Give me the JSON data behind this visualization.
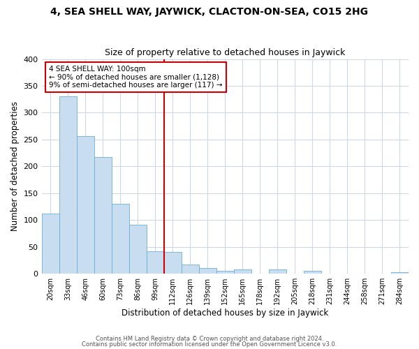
{
  "title": "4, SEA SHELL WAY, JAYWICK, CLACTON-ON-SEA, CO15 2HG",
  "subtitle": "Size of property relative to detached houses in Jaywick",
  "xlabel": "Distribution of detached houses by size in Jaywick",
  "ylabel": "Number of detached properties",
  "bar_labels": [
    "20sqm",
    "33sqm",
    "46sqm",
    "60sqm",
    "73sqm",
    "86sqm",
    "99sqm",
    "112sqm",
    "126sqm",
    "139sqm",
    "152sqm",
    "165sqm",
    "178sqm",
    "192sqm",
    "205sqm",
    "218sqm",
    "231sqm",
    "244sqm",
    "258sqm",
    "271sqm",
    "284sqm"
  ],
  "bar_values": [
    112,
    330,
    256,
    218,
    130,
    91,
    42,
    40,
    17,
    11,
    6,
    8,
    0,
    8,
    0,
    5,
    0,
    0,
    0,
    0,
    3
  ],
  "bar_color": "#c9ddf0",
  "bar_edge_color": "#6baed6",
  "vline_color": "#cc0000",
  "annotation_line1": "4 SEA SHELL WAY: 100sqm",
  "annotation_line2": "← 90% of detached houses are smaller (1,128)",
  "annotation_line3": "9% of semi-detached houses are larger (117) →",
  "annotation_box_color": "#ffffff",
  "annotation_box_edge": "#cc0000",
  "ylim": [
    0,
    400
  ],
  "yticks": [
    0,
    50,
    100,
    150,
    200,
    250,
    300,
    350,
    400
  ],
  "footer1": "Contains HM Land Registry data © Crown copyright and database right 2024.",
  "footer2": "Contains public sector information licensed under the Open Government Licence v3.0.",
  "background_color": "#ffffff",
  "grid_color": "#d0d8e8"
}
